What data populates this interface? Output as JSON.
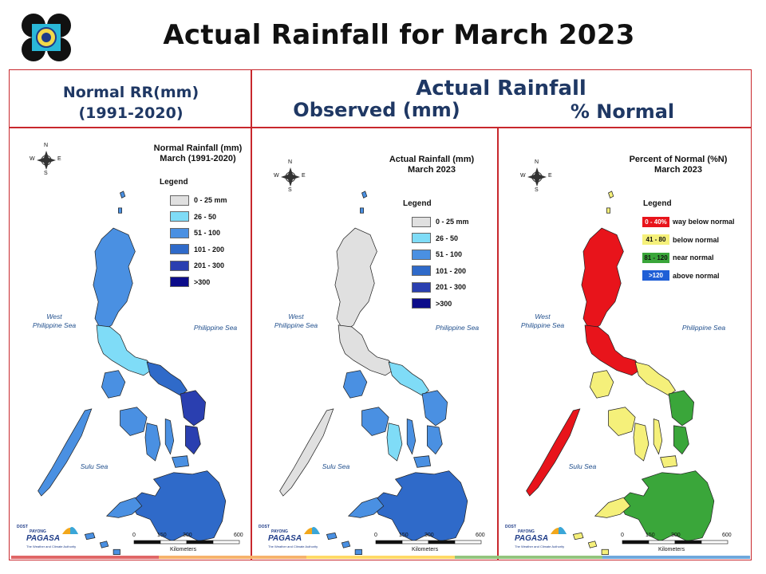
{
  "title": "Actual Rainfall for March 2023",
  "headers": {
    "normal_line1": "Normal RR(mm)",
    "normal_line2": "(1991-2020)",
    "actual": "Actual Rainfall",
    "observed": "Observed (mm)",
    "percent": "% Normal"
  },
  "maps": [
    {
      "title_line1": "Normal Rainfall (mm)",
      "title_line2": "March (1991-2020)",
      "legend_title": "Legend",
      "legend": [
        {
          "label": "0 - 25 mm",
          "color": "#e0e0e0"
        },
        {
          "label": "26 - 50",
          "color": "#7fdcf7"
        },
        {
          "label": "51 - 100",
          "color": "#4a90e2"
        },
        {
          "label": "101 - 200",
          "color": "#2f6ac9"
        },
        {
          "label": "201 - 300",
          "color": "#2a3fb0"
        },
        {
          "label": ">300",
          "color": "#0c0c8a"
        }
      ]
    },
    {
      "title_line1": "Actual Rainfall (mm)",
      "title_line2": "March 2023",
      "legend_title": "Legend",
      "legend": [
        {
          "label": "0 - 25 mm",
          "color": "#e0e0e0"
        },
        {
          "label": "26 - 50",
          "color": "#7fdcf7"
        },
        {
          "label": "51 - 100",
          "color": "#4a90e2"
        },
        {
          "label": "101 - 200",
          "color": "#2f6ac9"
        },
        {
          "label": "201 - 300",
          "color": "#2a3fb0"
        },
        {
          "label": ">300",
          "color": "#0c0c8a"
        }
      ]
    },
    {
      "title_line1": "Percent of Normal (%N)",
      "title_line2": "March 2023",
      "legend_title": "Legend",
      "legend": [
        {
          "range": "0 - 40%",
          "label": "way below normal",
          "color": "#e8141b"
        },
        {
          "range": "41 - 80",
          "label": "below normal",
          "color": "#f5f07a"
        },
        {
          "range": "81 - 120",
          "label": "near normal",
          "color": "#3aa63a"
        },
        {
          "range": ">120",
          "label": "above normal",
          "color": "#1f5fd6"
        }
      ]
    }
  ],
  "labels": {
    "west_sea": "West\nPhilippine Sea",
    "ph_sea": "Philippine Sea",
    "sulu_sea": "Sulu Sea",
    "compass_n": "N",
    "compass_s": "S",
    "compass_e": "E",
    "compass_w": "W",
    "scale_ticks": [
      "0",
      "150",
      "300",
      "600"
    ],
    "scale_unit": "Kilometers",
    "brand": "PAGASA",
    "brand_small": "DOST",
    "brand_payong": "PAYONG",
    "brand_tagline": "The Weather and Climate Authority"
  },
  "colors": {
    "frame": "#c8282d",
    "header_text": "#1f3864"
  }
}
